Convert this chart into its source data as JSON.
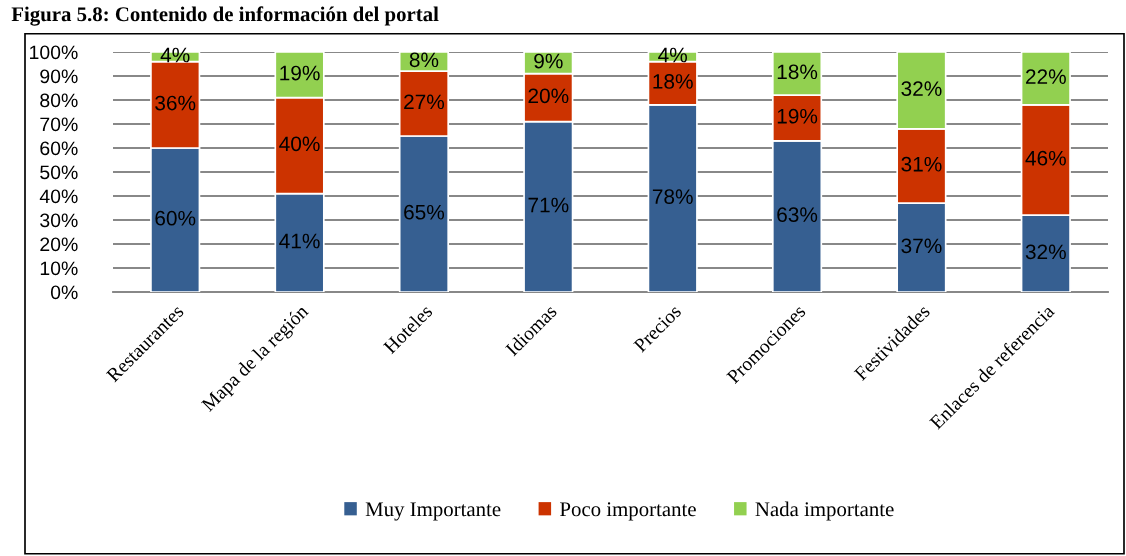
{
  "chart_data": {
    "type": "bar",
    "stacked": true,
    "title": "Figura 5.8: Contenido de información del portal",
    "categories": [
      "Restaurantes",
      "Mapa de la región",
      "Hoteles",
      "Idiomas",
      "Precios",
      "Promociones",
      "Festividades",
      "Enlaces de referencia"
    ],
    "series": [
      {
        "name": "Muy Importante",
        "color": "#365f91",
        "values": [
          60,
          41,
          65,
          71,
          78,
          63,
          37,
          32
        ],
        "value_labels": [
          "60%",
          "41%",
          "65%",
          "71%",
          "78%",
          "63%",
          "37%",
          "32%"
        ]
      },
      {
        "name": "Poco importante",
        "color": "#cc3300",
        "values": [
          36,
          40,
          27,
          20,
          18,
          19,
          31,
          46
        ],
        "value_labels": [
          "36%",
          "40%",
          "27%",
          "20%",
          "18%",
          "19%",
          "31%",
          "46%"
        ]
      },
      {
        "name": "Nada importante",
        "color": "#92d050",
        "values": [
          4,
          19,
          8,
          9,
          4,
          18,
          32,
          22
        ],
        "value_labels": [
          "4%",
          "19%",
          "8%",
          "9%",
          "4%",
          "18%",
          "32%",
          "22%"
        ]
      }
    ],
    "ylim": [
      0,
      100
    ],
    "yticks": [
      {
        "value": 0,
        "label": "0%"
      },
      {
        "value": 10,
        "label": "10%"
      },
      {
        "value": 20,
        "label": "20%"
      },
      {
        "value": 30,
        "label": "30%"
      },
      {
        "value": 40,
        "label": "40%"
      },
      {
        "value": 50,
        "label": "50%"
      },
      {
        "value": 60,
        "label": "60%"
      },
      {
        "value": 70,
        "label": "70%"
      },
      {
        "value": 80,
        "label": "80%"
      },
      {
        "value": 90,
        "label": "90%"
      },
      {
        "value": 100,
        "label": "100%"
      }
    ],
    "grid": "y",
    "legend": "bottom"
  }
}
